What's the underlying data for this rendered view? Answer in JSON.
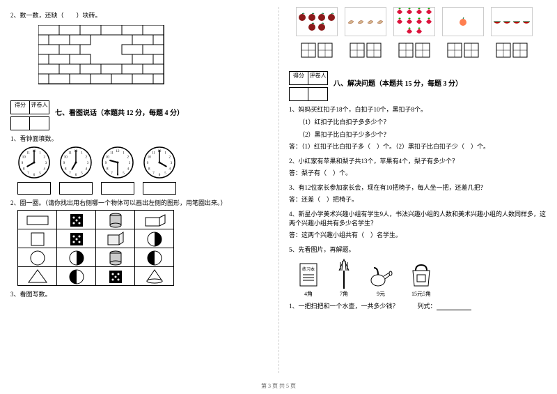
{
  "left": {
    "q2_text": "2、数一数，还缺（　　）块砖。",
    "brick": {
      "rows": 6,
      "cols": 6,
      "brick_w": 30,
      "brick_h": 14,
      "stroke": "#000",
      "fill": "#fff"
    },
    "score_labels": [
      "得分",
      "评卷人"
    ],
    "section7_title": "七、看图说话（本题共 12 分，每题 4 分）",
    "q7_1": "1、看钟面填数。",
    "clocks": [
      {
        "hour": 8,
        "minute": 0
      },
      {
        "hour": 7,
        "minute": 0
      },
      {
        "hour": 9,
        "minute": 30
      },
      {
        "hour": 4,
        "minute": 0
      }
    ],
    "q7_2": "2、圈一圈。（请你找出用右侧哪一个物体可以画出左侧的图形，用笔圈出来。）",
    "trace_rows": [
      {
        "target": "rect",
        "options": [
          "dice",
          "can",
          "cuboid"
        ]
      },
      {
        "target": "square",
        "options": [
          "dice",
          "cuboid2",
          "half1"
        ]
      },
      {
        "target": "circle",
        "options": [
          "half1",
          "can",
          "half2"
        ]
      },
      {
        "target": "triangle",
        "options": [
          "half2",
          "dice",
          "cone"
        ]
      }
    ],
    "q7_3": "3、看图写数。"
  },
  "right": {
    "fruits": [
      {
        "color": "#8b1a1a",
        "count": 6,
        "shape": "apple"
      },
      {
        "color": "#d2b48c",
        "count": 4,
        "shape": "banana"
      },
      {
        "color": "#dc143c",
        "count": 10,
        "shape": "strawberry"
      },
      {
        "color": "#ff7f50",
        "count": 1,
        "shape": "peach"
      },
      {
        "color": "#228b22",
        "count": 4,
        "shape": "melon"
      }
    ],
    "score_labels": [
      "得分",
      "评卷人"
    ],
    "section8_title": "八、解决问题（本题共 15 分，每题 3 分）",
    "q8_1": "1、妈妈买红扣子18个，白扣子10个，黑扣子8个。",
    "q8_1_1": "（1）红扣子比白扣子多多少个？",
    "q8_1_2": "（2）黑扣子比白扣子少多少个？",
    "q8_1_ans": "答：（1）红扣子比白扣子多（　）个。（2）黑扣子比白扣子少（　）个。",
    "q8_2": "2、小红家有苹果和梨子共13个，苹果有4个，梨子有多少个？",
    "q8_2_ans": "答：梨子有（　）个。",
    "q8_3": "3、有12位家长参加家长会，现在有10把椅子，每人坐一把，还差几把？",
    "q8_3_ans": "答：还差（　）把椅子。",
    "q8_4": "4、新星小学美术兴趣小组有学生9人，书法兴趣小组的人数和美术兴趣小组的人数同样多，这两个兴趣小组共有多少名学生？",
    "q8_4_ans": "答：这两个兴趣小组共有（　）名学生。",
    "q8_5": "5、先看图片，再解题。",
    "items": [
      {
        "name": "练习本",
        "price": "4角"
      },
      {
        "name": "扫把",
        "price": "7角"
      },
      {
        "name": "水壶",
        "price": "9元"
      },
      {
        "name": "书包",
        "price": "15元5角"
      }
    ],
    "q8_5_q": "1、一把扫把和一个水壶，一共多少钱？　　　列式：",
    "footer": "第 3 页 共 5 页"
  }
}
